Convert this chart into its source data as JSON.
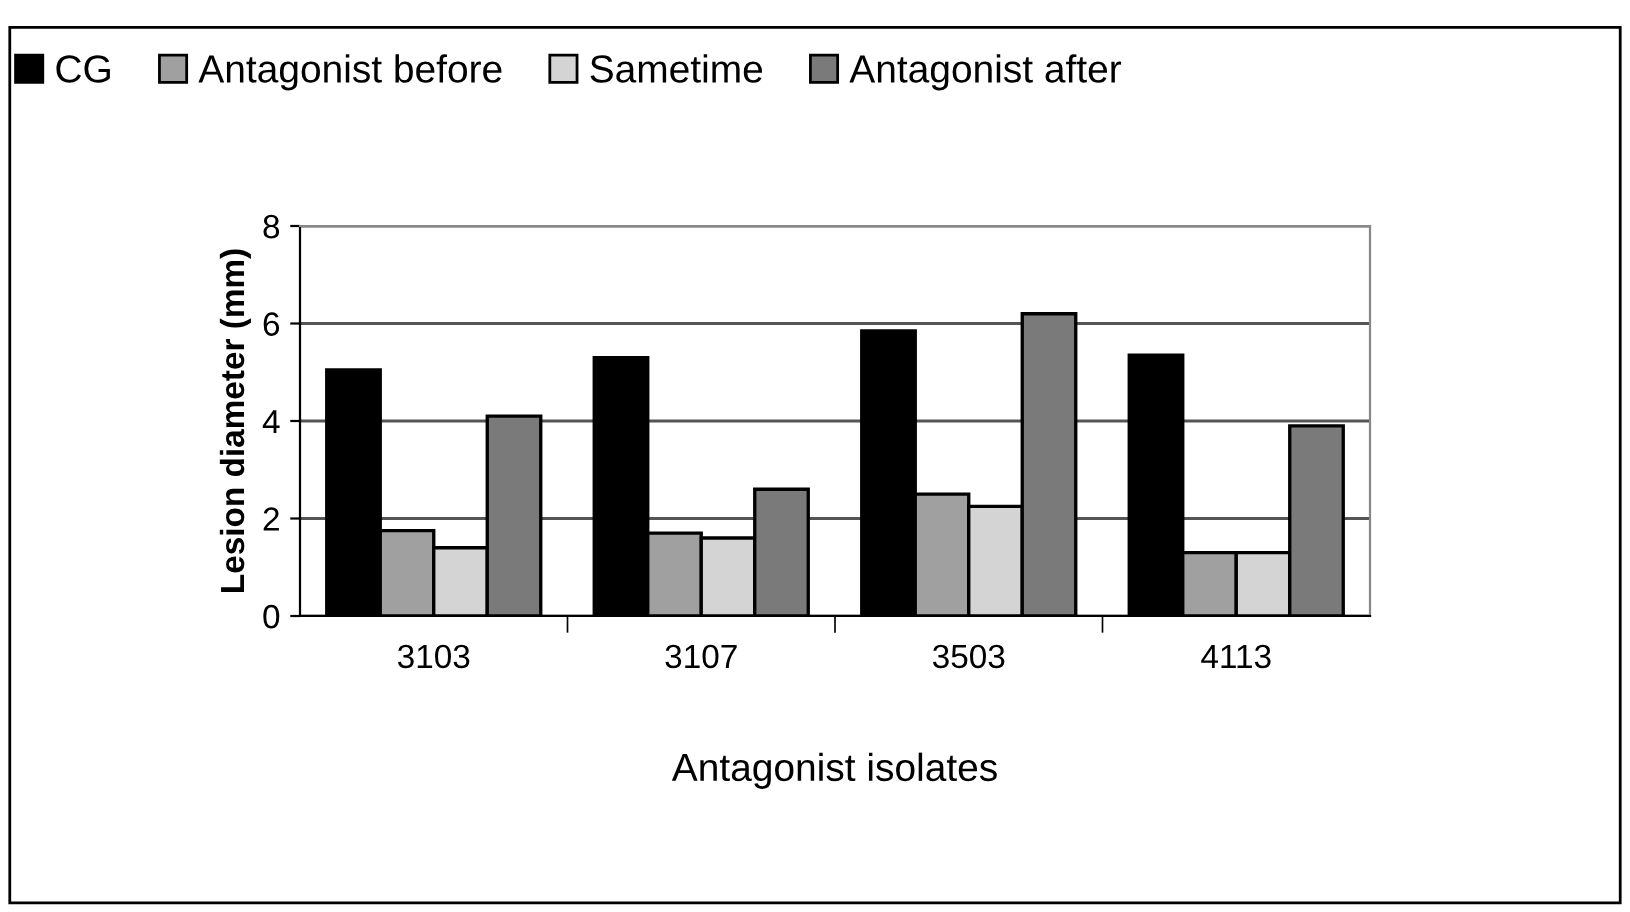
{
  "chart_data": {
    "type": "bar",
    "xlabel": "Antagonist isolates",
    "ylabel": "Lesion diameter (mm)",
    "categories": [
      "3103",
      "3107",
      "3503",
      "4113"
    ],
    "series": [
      {
        "name": "CG",
        "color": "#000000",
        "values": [
          5.05,
          5.3,
          5.85,
          5.35
        ]
      },
      {
        "name": "Antagonist before",
        "color": "#a0a0a0",
        "values": [
          1.75,
          1.7,
          2.5,
          1.3
        ]
      },
      {
        "name": "Sametime",
        "color": "#d4d4d4",
        "values": [
          1.4,
          1.6,
          2.25,
          1.3
        ]
      },
      {
        "name": "Antagonist after",
        "color": "#7a7a7a",
        "values": [
          4.1,
          2.6,
          6.2,
          3.9
        ]
      }
    ],
    "ylim": [
      0,
      8
    ],
    "yticks": [
      0,
      2,
      4,
      6,
      8
    ],
    "grid": "y",
    "legend": "top"
  }
}
